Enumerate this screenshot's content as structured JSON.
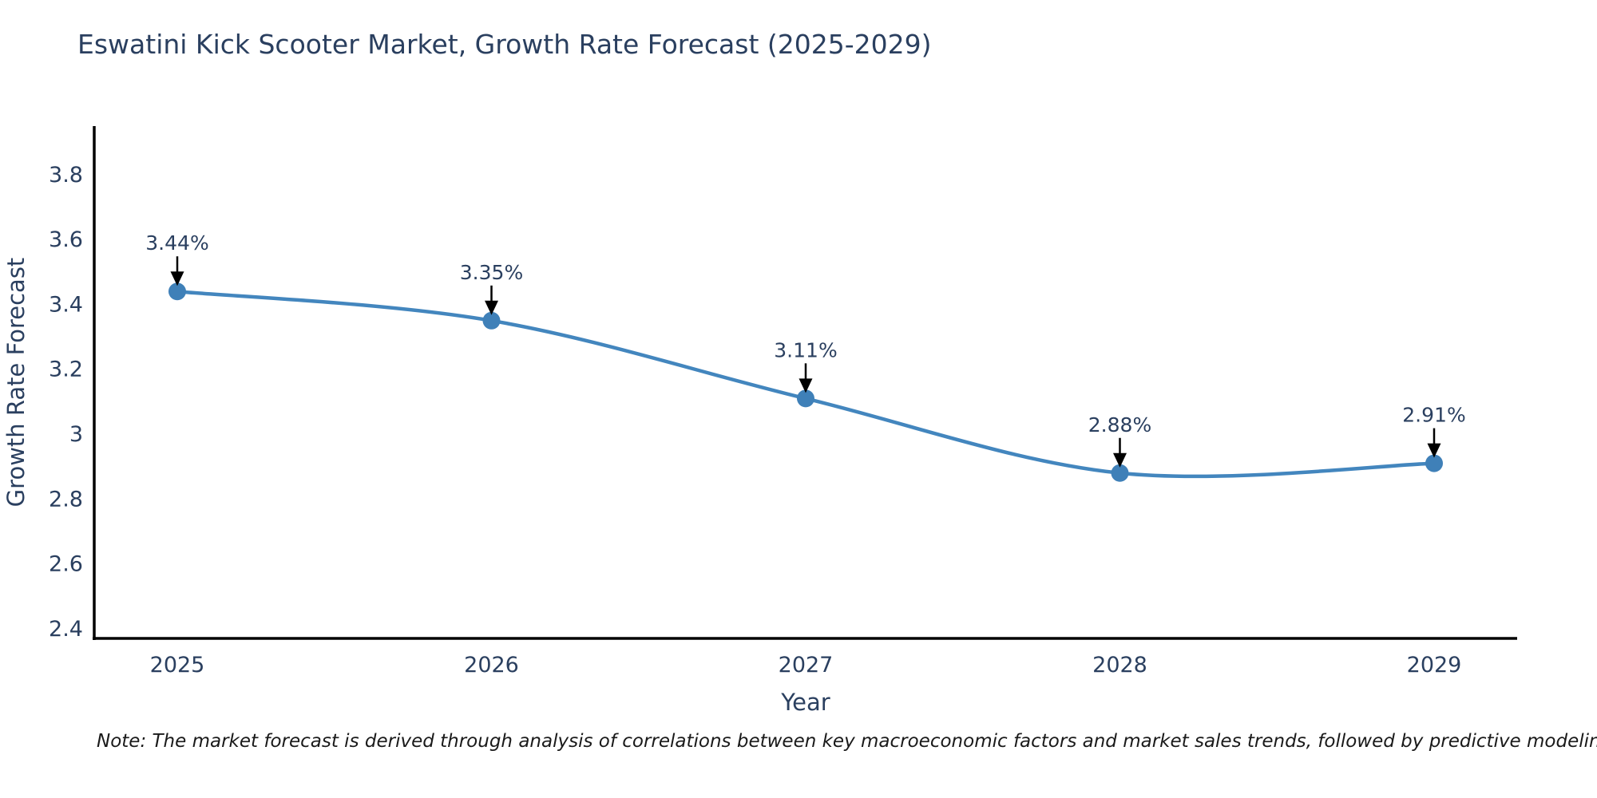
{
  "note": "Note: The market forecast is derived through analysis of correlations between key macroeconomic factors and market sales trends, followed by predictive modeling to project future sales",
  "chart_data": {
    "type": "line",
    "title": "Eswatini Kick Scooter Market, Growth Rate Forecast (2025-2029)",
    "x": [
      "2025",
      "2026",
      "2027",
      "2028",
      "2029"
    ],
    "series": [
      {
        "name": "Growth Rate Forecast",
        "values": [
          3.44,
          3.35,
          3.11,
          2.88,
          2.91
        ]
      }
    ],
    "point_labels": [
      "3.44%",
      "3.35%",
      "3.11%",
      "2.88%",
      "2.91%"
    ],
    "xlabel": "Year",
    "ylabel": "Growth Rate Forecast",
    "yticks": [
      2.4,
      2.6,
      2.8,
      3,
      3.2,
      3.4,
      3.6,
      3.8
    ],
    "ylim": [
      2.37,
      3.95
    ],
    "grid": false,
    "legend": "none",
    "line_style": "smooth",
    "marker_style": "circle",
    "annotation_arrows": true,
    "colors": {
      "line": "#4386be",
      "marker": "#3f80b8",
      "text": "#2a3f5f",
      "axis": "#000000",
      "arrow": "#000000"
    }
  }
}
